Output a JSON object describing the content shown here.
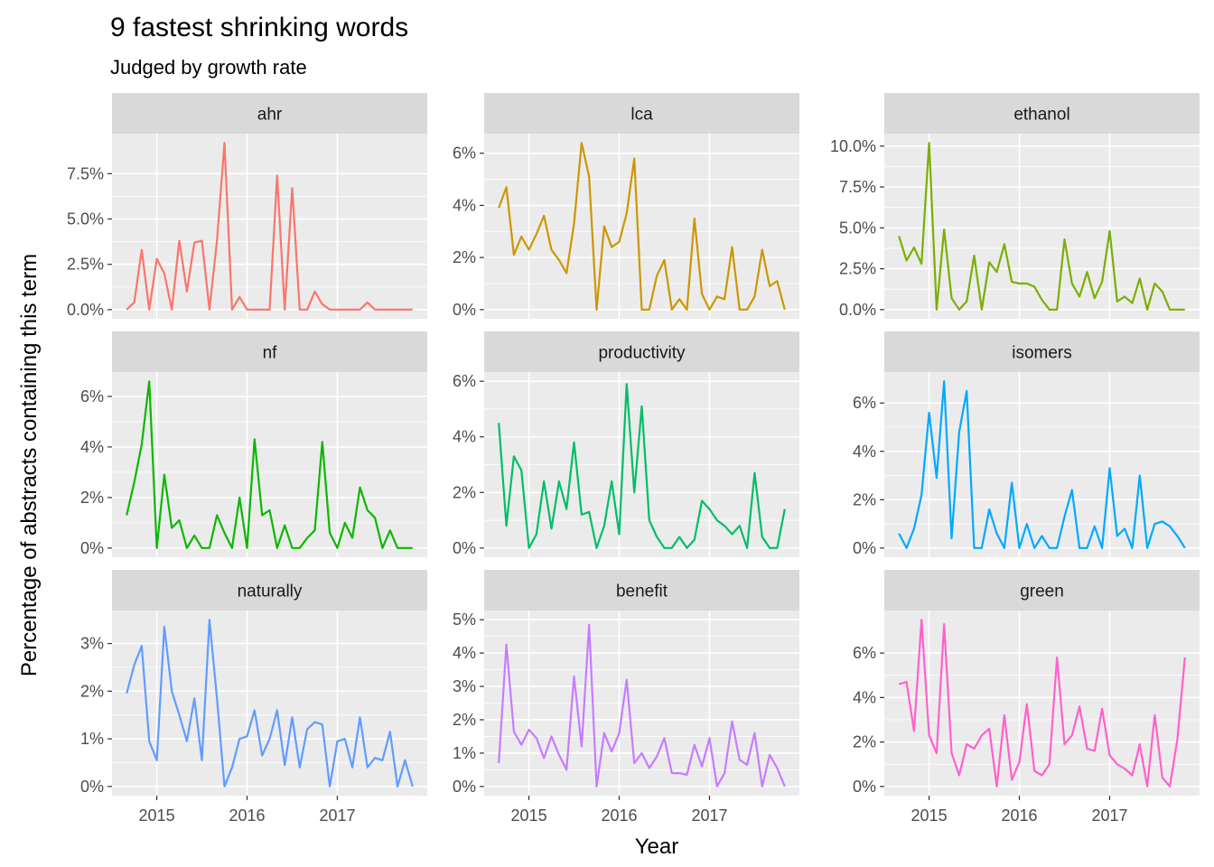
{
  "figure": {
    "title": "9 fastest shrinking words",
    "subtitle": "Judged by growth rate",
    "xlabel": "Year",
    "ylabel": "Percentage of abstracts containing this term",
    "x_ticks": [
      "2015",
      "2016",
      "2017"
    ]
  },
  "chart_data": {
    "type": "line",
    "layout": "facet-grid-3x3",
    "x_dates": [
      "2014-09",
      "2014-10",
      "2014-11",
      "2014-12",
      "2015-01",
      "2015-02",
      "2015-03",
      "2015-04",
      "2015-05",
      "2015-06",
      "2015-07",
      "2015-08",
      "2015-09",
      "2015-10",
      "2015-11",
      "2015-12",
      "2016-01",
      "2016-02",
      "2016-03",
      "2016-04",
      "2016-05",
      "2016-06",
      "2016-07",
      "2016-08",
      "2016-09",
      "2016-10",
      "2016-11",
      "2016-12",
      "2017-01",
      "2017-02",
      "2017-03",
      "2017-04",
      "2017-05",
      "2017-06",
      "2017-07",
      "2017-08",
      "2017-09",
      "2017-10",
      "2017-11"
    ],
    "x_ticks": [
      "2015",
      "2016",
      "2017"
    ],
    "facets": [
      {
        "name": "ahr",
        "color": "#F8766D",
        "yticks": [
          0,
          2.5,
          5,
          7.5
        ],
        "ytick_labels": [
          "0.0%",
          "2.5%",
          "5.0%",
          "7.5%"
        ],
        "values": [
          0,
          0.4,
          3.3,
          0,
          2.8,
          2.0,
          0,
          3.8,
          1.0,
          3.7,
          3.8,
          0,
          3.8,
          9.2,
          0,
          0.7,
          0,
          0,
          0,
          0,
          7.4,
          0,
          6.7,
          0,
          0,
          1.0,
          0.3,
          0,
          0,
          0,
          0,
          0,
          0.4,
          0,
          0,
          0,
          0,
          0,
          0
        ]
      },
      {
        "name": "lca",
        "color": "#CD9600",
        "yticks": [
          0,
          2,
          4,
          6
        ],
        "ytick_labels": [
          "0%",
          "2%",
          "4%",
          "6%"
        ],
        "values": [
          3.9,
          4.7,
          2.1,
          2.8,
          2.3,
          2.9,
          3.6,
          2.3,
          1.9,
          1.4,
          3.3,
          6.4,
          5.1,
          0,
          3.2,
          2.4,
          2.6,
          3.7,
          5.8,
          0,
          0,
          1.3,
          1.9,
          0,
          0.4,
          0,
          3.5,
          0.6,
          0,
          0.5,
          0.4,
          2.4,
          0,
          0,
          0.5,
          2.3,
          0.9,
          1.1,
          0
        ]
      },
      {
        "name": "ethanol",
        "color": "#7CAE00",
        "yticks": [
          0,
          2.5,
          5,
          7.5,
          10
        ],
        "ytick_labels": [
          "0.0%",
          "2.5%",
          "5.0%",
          "7.5%",
          "10.0%"
        ],
        "values": [
          4.5,
          3.0,
          3.8,
          2.8,
          10.2,
          0,
          4.9,
          0.7,
          0,
          0.5,
          3.3,
          0,
          2.9,
          2.3,
          4.0,
          1.7,
          1.6,
          1.6,
          1.4,
          0.6,
          0,
          0,
          4.3,
          1.6,
          0.8,
          2.3,
          0.7,
          1.7,
          4.8,
          0.5,
          0.8,
          0.4,
          1.9,
          0,
          1.6,
          1.1,
          0,
          0,
          0
        ]
      },
      {
        "name": "nf",
        "color": "#0CB702",
        "yticks": [
          0,
          2,
          4,
          6
        ],
        "ytick_labels": [
          "0%",
          "2%",
          "4%",
          "6%"
        ],
        "values": [
          1.3,
          2.6,
          4.1,
          6.6,
          0,
          2.9,
          0.8,
          1.1,
          0,
          0.5,
          0,
          0,
          1.3,
          0.6,
          0,
          2.0,
          0,
          4.3,
          1.3,
          1.5,
          0,
          0.9,
          0,
          0,
          0.4,
          0.7,
          4.2,
          0.6,
          0,
          1.0,
          0.4,
          2.4,
          1.5,
          1.2,
          0,
          0.7,
          0,
          0,
          0
        ]
      },
      {
        "name": "productivity",
        "color": "#00BE67",
        "yticks": [
          0,
          2,
          4,
          6
        ],
        "ytick_labels": [
          "0%",
          "2%",
          "4%",
          "6%"
        ],
        "values": [
          4.5,
          0.8,
          3.3,
          2.8,
          0,
          0.5,
          2.4,
          0.7,
          2.4,
          1.4,
          3.8,
          1.2,
          1.3,
          0,
          0.8,
          2.4,
          0.5,
          5.9,
          2.0,
          5.1,
          1.0,
          0.4,
          0,
          0,
          0.4,
          0,
          0.3,
          1.7,
          1.4,
          1.0,
          0.8,
          0.5,
          0.8,
          0,
          2.7,
          0.4,
          0,
          0,
          1.4
        ]
      },
      {
        "name": "isomers",
        "color": "#00A9FF",
        "yticks": [
          0,
          2,
          4,
          6
        ],
        "ytick_labels": [
          "0%",
          "2%",
          "4%",
          "6%"
        ],
        "values": [
          0.6,
          0,
          0.8,
          2.2,
          5.6,
          2.9,
          6.9,
          0.4,
          4.8,
          6.5,
          0,
          0,
          1.6,
          0.6,
          0,
          2.7,
          0,
          1.0,
          0,
          0.5,
          0,
          0,
          1.3,
          2.4,
          0,
          0,
          0.9,
          0,
          3.3,
          0.5,
          0.8,
          0,
          3.0,
          0,
          1.0,
          1.1,
          0.9,
          0.5,
          0
        ]
      },
      {
        "name": "naturally",
        "color": "#619CFF",
        "yticks": [
          0,
          1,
          2,
          3
        ],
        "ytick_labels": [
          "0%",
          "1%",
          "2%",
          "3%"
        ],
        "values": [
          1.95,
          2.55,
          2.95,
          0.95,
          0.55,
          3.35,
          2.0,
          1.5,
          0.95,
          1.85,
          0.55,
          3.5,
          1.85,
          0,
          0.4,
          1.0,
          1.05,
          1.6,
          0.65,
          1.0,
          1.6,
          0.45,
          1.45,
          0.4,
          1.2,
          1.35,
          1.3,
          0,
          0.95,
          1.0,
          0.4,
          1.45,
          0.4,
          0.6,
          0.55,
          1.15,
          0,
          0.55,
          0
        ]
      },
      {
        "name": "benefit",
        "color": "#C77CFF",
        "yticks": [
          0,
          1,
          2,
          3,
          4,
          5
        ],
        "ytick_labels": [
          "0%",
          "1%",
          "2%",
          "3%",
          "4%",
          "5%"
        ],
        "values": [
          0.7,
          4.25,
          1.65,
          1.25,
          1.7,
          1.45,
          0.85,
          1.5,
          0.95,
          0.5,
          3.3,
          1.2,
          4.85,
          0,
          1.6,
          1.05,
          1.6,
          3.2,
          0.7,
          1.0,
          0.55,
          0.9,
          1.45,
          0.4,
          0.4,
          0.35,
          1.25,
          0.6,
          1.45,
          0,
          0.4,
          1.95,
          0.8,
          0.65,
          1.6,
          0,
          0.95,
          0.55,
          0
        ]
      },
      {
        "name": "green",
        "color": "#FF61CC",
        "yticks": [
          0,
          2,
          4,
          6
        ],
        "ytick_labels": [
          "0%",
          "2%",
          "4%",
          "6%"
        ],
        "values": [
          4.6,
          4.7,
          2.5,
          7.5,
          2.3,
          1.5,
          7.3,
          1.5,
          0.5,
          1.9,
          1.7,
          2.3,
          2.6,
          0,
          3.2,
          0.3,
          1.1,
          3.7,
          0.7,
          0.5,
          1.0,
          5.8,
          1.9,
          2.3,
          3.6,
          1.7,
          1.6,
          3.5,
          1.4,
          1.0,
          0.8,
          0.5,
          1.9,
          0,
          3.2,
          0.4,
          0,
          2.1,
          5.8
        ]
      }
    ]
  }
}
